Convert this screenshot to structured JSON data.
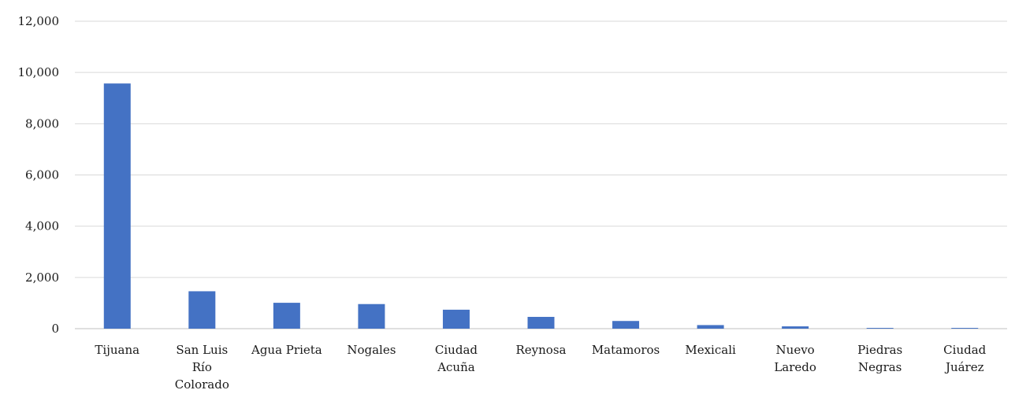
{
  "chart_data": {
    "type": "bar",
    "categories": [
      [
        "Tijuana"
      ],
      [
        "San Luis",
        "Río",
        "Colorado"
      ],
      [
        "Agua Prieta"
      ],
      [
        "Nogales"
      ],
      [
        "Ciudad",
        "Acuña"
      ],
      [
        "Reynosa"
      ],
      [
        "Matamoros"
      ],
      [
        "Mexicali"
      ],
      [
        "Nuevo",
        "Laredo"
      ],
      [
        "Piedras",
        "Negras"
      ],
      [
        "Ciudad",
        "Juárez"
      ]
    ],
    "values": [
      9570,
      1460,
      1010,
      960,
      740,
      460,
      300,
      140,
      90,
      30,
      30
    ],
    "ylim": [
      0,
      12000
    ],
    "yticks": [
      0,
      2000,
      4000,
      6000,
      8000,
      10000,
      12000
    ],
    "ytick_labels": [
      "0",
      "2,000",
      "4,000",
      "6,000",
      "8,000",
      "10,000",
      "12,000"
    ],
    "title": "",
    "xlabel": "",
    "ylabel": "",
    "grid": true,
    "legend": "none",
    "colors": {
      "bar": "#4472c4",
      "grid": "#d9d9d9",
      "axis": "#bfbfbf"
    }
  }
}
